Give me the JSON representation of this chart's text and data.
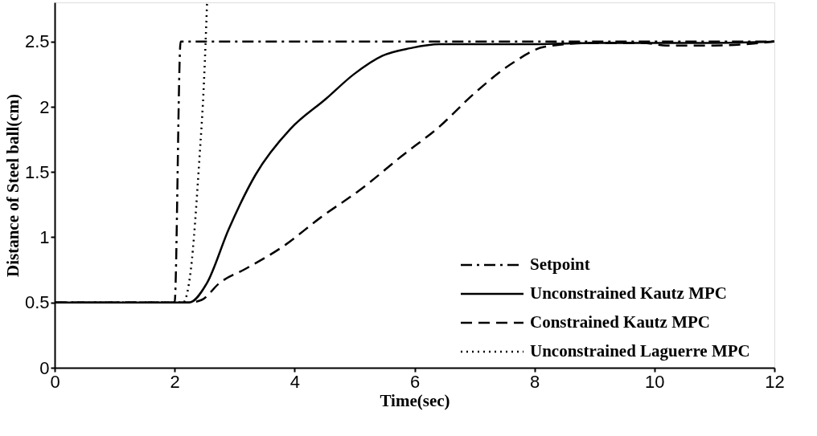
{
  "chart_data": {
    "type": "line",
    "xlabel": "Time(sec)",
    "ylabel": "Distance of Steel ball(cm)",
    "xlim": [
      0,
      12
    ],
    "ylim": [
      0,
      2.8
    ],
    "xticks": [
      0,
      2,
      4,
      6,
      8,
      10,
      12
    ],
    "yticks": [
      0,
      0.5,
      1,
      1.5,
      2,
      2.5
    ],
    "grid": false,
    "legend": "bottom right",
    "marker": "none",
    "series": [
      {
        "name": "Setpoint",
        "color": "#000000",
        "line_style": "dashdot",
        "x": [
          0,
          2,
          2.1,
          12
        ],
        "values": [
          0.5,
          0.5,
          2.5,
          2.5
        ]
      },
      {
        "name": "Unconstrained Kautz MPC",
        "color": "#000000",
        "line_style": "solid",
        "x": [
          0,
          2.24,
          2.54,
          2.9,
          3.35,
          3.93,
          4.52,
          4.99,
          5.46,
          5.94,
          6.41,
          7,
          8,
          9,
          10,
          11,
          12
        ],
        "values": [
          0.5,
          0.5,
          0.65,
          1.06,
          1.48,
          1.83,
          2.06,
          2.25,
          2.39,
          2.45,
          2.48,
          2.48,
          2.48,
          2.49,
          2.49,
          2.49,
          2.5
        ]
      },
      {
        "name": "Constrained Kautz MPC",
        "color": "#000000",
        "line_style": "dashed",
        "x": [
          0,
          2.24,
          2.45,
          2.75,
          3.19,
          3.81,
          4.43,
          5.14,
          5.78,
          6.42,
          6.99,
          7.65,
          8.17,
          9,
          9.8,
          10.2,
          11,
          12
        ],
        "values": [
          0.5,
          0.5,
          0.52,
          0.65,
          0.76,
          0.93,
          1.15,
          1.38,
          1.62,
          1.85,
          2.1,
          2.34,
          2.46,
          2.49,
          2.49,
          2.47,
          2.47,
          2.5
        ]
      },
      {
        "name": "Unconstrained Laguerre MPC",
        "color": "#000000",
        "line_style": "dotted",
        "x": [
          0,
          2.14,
          2.27,
          2.41,
          2.49,
          2.54
        ],
        "values": [
          0.5,
          0.5,
          0.75,
          1.58,
          2.2,
          2.79
        ]
      }
    ]
  }
}
